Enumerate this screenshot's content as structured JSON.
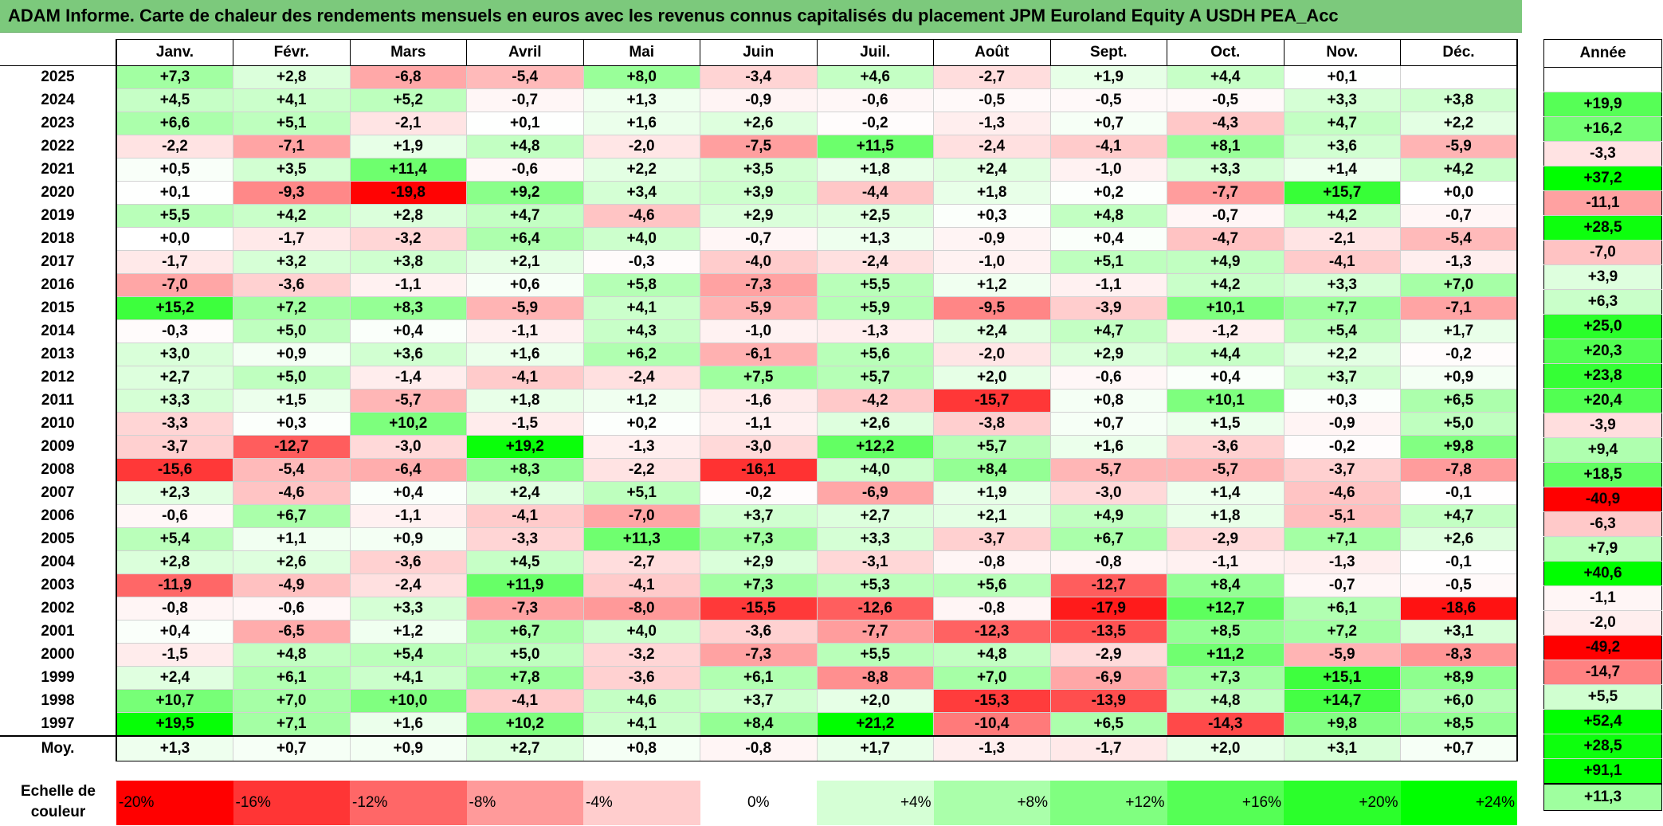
{
  "title": "ADAM Informe. Carte de chaleur des rendements mensuels en euros avec les revenus connus capitalisés du placement JPM Euroland Equity A USDH PEA_Acc",
  "chart_data": {
    "type": "heatmap",
    "columns": [
      "Janv.",
      "Févr.",
      "Mars",
      "Avril",
      "Mai",
      "Juin",
      "Juil.",
      "Août",
      "Sept.",
      "Oct.",
      "Nov.",
      "Déc."
    ],
    "annual_header": "Année",
    "rows": [
      {
        "year": "2025",
        "values": [
          "+7,3",
          "+2,8",
          "-6,8",
          "-5,4",
          "+8,0",
          "-3,4",
          "+4,6",
          "-2,7",
          "+1,9",
          "+4,4",
          "+0,1",
          ""
        ],
        "annual": ""
      },
      {
        "year": "2024",
        "values": [
          "+4,5",
          "+4,1",
          "+5,2",
          "-0,7",
          "+1,3",
          "-0,9",
          "-0,6",
          "-0,5",
          "-0,5",
          "-0,5",
          "+3,3",
          "+3,8"
        ],
        "annual": "+19,9"
      },
      {
        "year": "2023",
        "values": [
          "+6,6",
          "+5,1",
          "-2,1",
          "+0,1",
          "+1,6",
          "+2,6",
          "-0,2",
          "-1,3",
          "+0,7",
          "-4,3",
          "+4,7",
          "+2,2"
        ],
        "annual": "+16,2"
      },
      {
        "year": "2022",
        "values": [
          "-2,2",
          "-7,1",
          "+1,9",
          "+4,8",
          "-2,0",
          "-7,5",
          "+11,5",
          "-2,4",
          "-4,1",
          "+8,1",
          "+3,6",
          "-5,9"
        ],
        "annual": "-3,3"
      },
      {
        "year": "2021",
        "values": [
          "+0,5",
          "+3,5",
          "+11,4",
          "-0,6",
          "+2,2",
          "+3,5",
          "+1,8",
          "+2,4",
          "-1,0",
          "+3,3",
          "+1,4",
          "+4,2"
        ],
        "annual": "+37,2"
      },
      {
        "year": "2020",
        "values": [
          "+0,1",
          "-9,3",
          "-19,8",
          "+9,2",
          "+3,4",
          "+3,9",
          "-4,4",
          "+1,8",
          "+0,2",
          "-7,7",
          "+15,7",
          "+0,0"
        ],
        "annual": "-11,1"
      },
      {
        "year": "2019",
        "values": [
          "+5,5",
          "+4,2",
          "+2,8",
          "+4,7",
          "-4,6",
          "+2,9",
          "+2,5",
          "+0,3",
          "+4,8",
          "-0,7",
          "+4,2",
          "-0,7"
        ],
        "annual": "+28,5"
      },
      {
        "year": "2018",
        "values": [
          "+0,0",
          "-1,7",
          "-3,2",
          "+6,4",
          "+4,0",
          "-0,7",
          "+1,3",
          "-0,9",
          "+0,4",
          "-4,7",
          "-2,1",
          "-5,4"
        ],
        "annual": "-7,0"
      },
      {
        "year": "2017",
        "values": [
          "-1,7",
          "+3,2",
          "+3,8",
          "+2,1",
          "-0,3",
          "-4,0",
          "-2,4",
          "-1,0",
          "+5,1",
          "+4,9",
          "-4,1",
          "-1,3"
        ],
        "annual": "+3,9"
      },
      {
        "year": "2016",
        "values": [
          "-7,0",
          "-3,6",
          "-1,1",
          "+0,6",
          "+5,8",
          "-7,3",
          "+5,5",
          "+1,2",
          "-1,1",
          "+4,2",
          "+3,3",
          "+7,0"
        ],
        "annual": "+6,3"
      },
      {
        "year": "2015",
        "values": [
          "+15,2",
          "+7,2",
          "+8,3",
          "-5,9",
          "+4,1",
          "-5,9",
          "+5,9",
          "-9,5",
          "-3,9",
          "+10,1",
          "+7,7",
          "-7,1"
        ],
        "annual": "+25,0"
      },
      {
        "year": "2014",
        "values": [
          "-0,3",
          "+5,0",
          "+0,4",
          "-1,1",
          "+4,3",
          "-1,0",
          "-1,3",
          "+2,4",
          "+4,7",
          "-1,2",
          "+5,4",
          "+1,7"
        ],
        "annual": "+20,3"
      },
      {
        "year": "2013",
        "values": [
          "+3,0",
          "+0,9",
          "+3,6",
          "+1,6",
          "+6,2",
          "-6,1",
          "+5,6",
          "-2,0",
          "+2,9",
          "+4,4",
          "+2,2",
          "-0,2"
        ],
        "annual": "+23,8"
      },
      {
        "year": "2012",
        "values": [
          "+2,7",
          "+5,0",
          "-1,4",
          "-4,1",
          "-2,4",
          "+7,5",
          "+5,7",
          "+2,0",
          "-0,6",
          "+0,4",
          "+3,7",
          "+0,9"
        ],
        "annual": "+20,4"
      },
      {
        "year": "2011",
        "values": [
          "+3,3",
          "+1,5",
          "-5,7",
          "+1,8",
          "+1,2",
          "-1,6",
          "-4,2",
          "-15,7",
          "+0,8",
          "+10,1",
          "+0,3",
          "+6,5"
        ],
        "annual": "-3,9"
      },
      {
        "year": "2010",
        "values": [
          "-3,3",
          "+0,3",
          "+10,2",
          "-1,5",
          "+0,2",
          "-1,1",
          "+2,6",
          "-3,8",
          "+0,7",
          "+1,5",
          "-0,9",
          "+5,0"
        ],
        "annual": "+9,4"
      },
      {
        "year": "2009",
        "values": [
          "-3,7",
          "-12,7",
          "-3,0",
          "+19,2",
          "-1,3",
          "-3,0",
          "+12,2",
          "+5,7",
          "+1,6",
          "-3,6",
          "-0,2",
          "+9,8"
        ],
        "annual": "+18,5"
      },
      {
        "year": "2008",
        "values": [
          "-15,6",
          "-5,4",
          "-6,4",
          "+8,3",
          "-2,2",
          "-16,1",
          "+4,0",
          "+8,4",
          "-5,7",
          "-5,7",
          "-3,7",
          "-7,8"
        ],
        "annual": "-40,9"
      },
      {
        "year": "2007",
        "values": [
          "+2,3",
          "-4,6",
          "+0,4",
          "+2,4",
          "+5,1",
          "-0,2",
          "-6,9",
          "+1,9",
          "-3,0",
          "+1,4",
          "-4,6",
          "-0,1"
        ],
        "annual": "-6,3"
      },
      {
        "year": "2006",
        "values": [
          "-0,6",
          "+6,7",
          "-1,1",
          "-4,1",
          "-7,0",
          "+3,7",
          "+2,7",
          "+2,1",
          "+4,9",
          "+1,8",
          "-5,1",
          "+4,7"
        ],
        "annual": "+7,9"
      },
      {
        "year": "2005",
        "values": [
          "+5,4",
          "+1,1",
          "+0,9",
          "-3,3",
          "+11,3",
          "+7,3",
          "+3,3",
          "-3,7",
          "+6,7",
          "-2,9",
          "+7,1",
          "+2,6"
        ],
        "annual": "+40,6"
      },
      {
        "year": "2004",
        "values": [
          "+2,8",
          "+2,6",
          "-3,6",
          "+4,5",
          "-2,7",
          "+2,9",
          "-3,1",
          "-0,8",
          "-0,8",
          "-1,1",
          "-1,3",
          "-0,1"
        ],
        "annual": "-1,1"
      },
      {
        "year": "2003",
        "values": [
          "-11,9",
          "-4,9",
          "-2,4",
          "+11,9",
          "-4,1",
          "+7,3",
          "+5,3",
          "+5,6",
          "-12,7",
          "+8,4",
          "-0,7",
          "-0,5"
        ],
        "annual": "-2,0"
      },
      {
        "year": "2002",
        "values": [
          "-0,8",
          "-0,6",
          "+3,3",
          "-7,3",
          "-8,0",
          "-15,5",
          "-12,6",
          "-0,8",
          "-17,9",
          "+12,7",
          "+6,1",
          "-18,6"
        ],
        "annual": "-49,2"
      },
      {
        "year": "2001",
        "values": [
          "+0,4",
          "-6,5",
          "+1,2",
          "+6,7",
          "+4,0",
          "-3,6",
          "-7,7",
          "-12,3",
          "-13,5",
          "+8,5",
          "+7,2",
          "+3,1"
        ],
        "annual": "-14,7"
      },
      {
        "year": "2000",
        "values": [
          "-1,5",
          "+4,8",
          "+5,4",
          "+5,0",
          "-3,2",
          "-7,3",
          "+5,5",
          "+4,8",
          "-2,9",
          "+11,2",
          "-5,9",
          "-8,3"
        ],
        "annual": "+5,5"
      },
      {
        "year": "1999",
        "values": [
          "+2,4",
          "+6,1",
          "+4,1",
          "+7,8",
          "-3,6",
          "+6,1",
          "-8,8",
          "+7,0",
          "-6,9",
          "+7,3",
          "+15,1",
          "+8,9"
        ],
        "annual": "+52,4"
      },
      {
        "year": "1998",
        "values": [
          "+10,7",
          "+7,0",
          "+10,0",
          "-4,1",
          "+4,6",
          "+3,7",
          "+2,0",
          "-15,3",
          "-13,9",
          "+4,8",
          "+14,7",
          "+6,0"
        ],
        "annual": "+28,5"
      },
      {
        "year": "1997",
        "values": [
          "+19,5",
          "+7,1",
          "+1,6",
          "+10,2",
          "+4,1",
          "+8,4",
          "+21,2",
          "-10,4",
          "+6,5",
          "-14,3",
          "+9,8",
          "+8,5"
        ],
        "annual": "+91,1"
      }
    ],
    "average": {
      "label": "Moy.",
      "values": [
        "+1,3",
        "+0,7",
        "+0,9",
        "+2,7",
        "+0,8",
        "-0,8",
        "+1,7",
        "-1,3",
        "-1,7",
        "+2,0",
        "+3,1",
        "+0,7"
      ],
      "annual": "+11,3"
    },
    "color_scale": {
      "label": "Echelle de couleur",
      "stops": [
        {
          "label": "-20%",
          "color": "#ff0000"
        },
        {
          "label": "-16%",
          "color": "#ff3535"
        },
        {
          "label": "-12%",
          "color": "#ff6767"
        },
        {
          "label": "-8%",
          "color": "#ff9a9a"
        },
        {
          "label": "-4%",
          "color": "#ffcdcd"
        },
        {
          "label": "0%",
          "color": "#ffffff"
        },
        {
          "label": "+4%",
          "color": "#d5ffd5"
        },
        {
          "label": "+8%",
          "color": "#aaffaa"
        },
        {
          "label": "+12%",
          "color": "#80ff80"
        },
        {
          "label": "+16%",
          "color": "#55ff55"
        },
        {
          "label": "+20%",
          "color": "#2bff2b"
        },
        {
          "label": "+24%",
          "color": "#00ff00"
        }
      ]
    }
  }
}
